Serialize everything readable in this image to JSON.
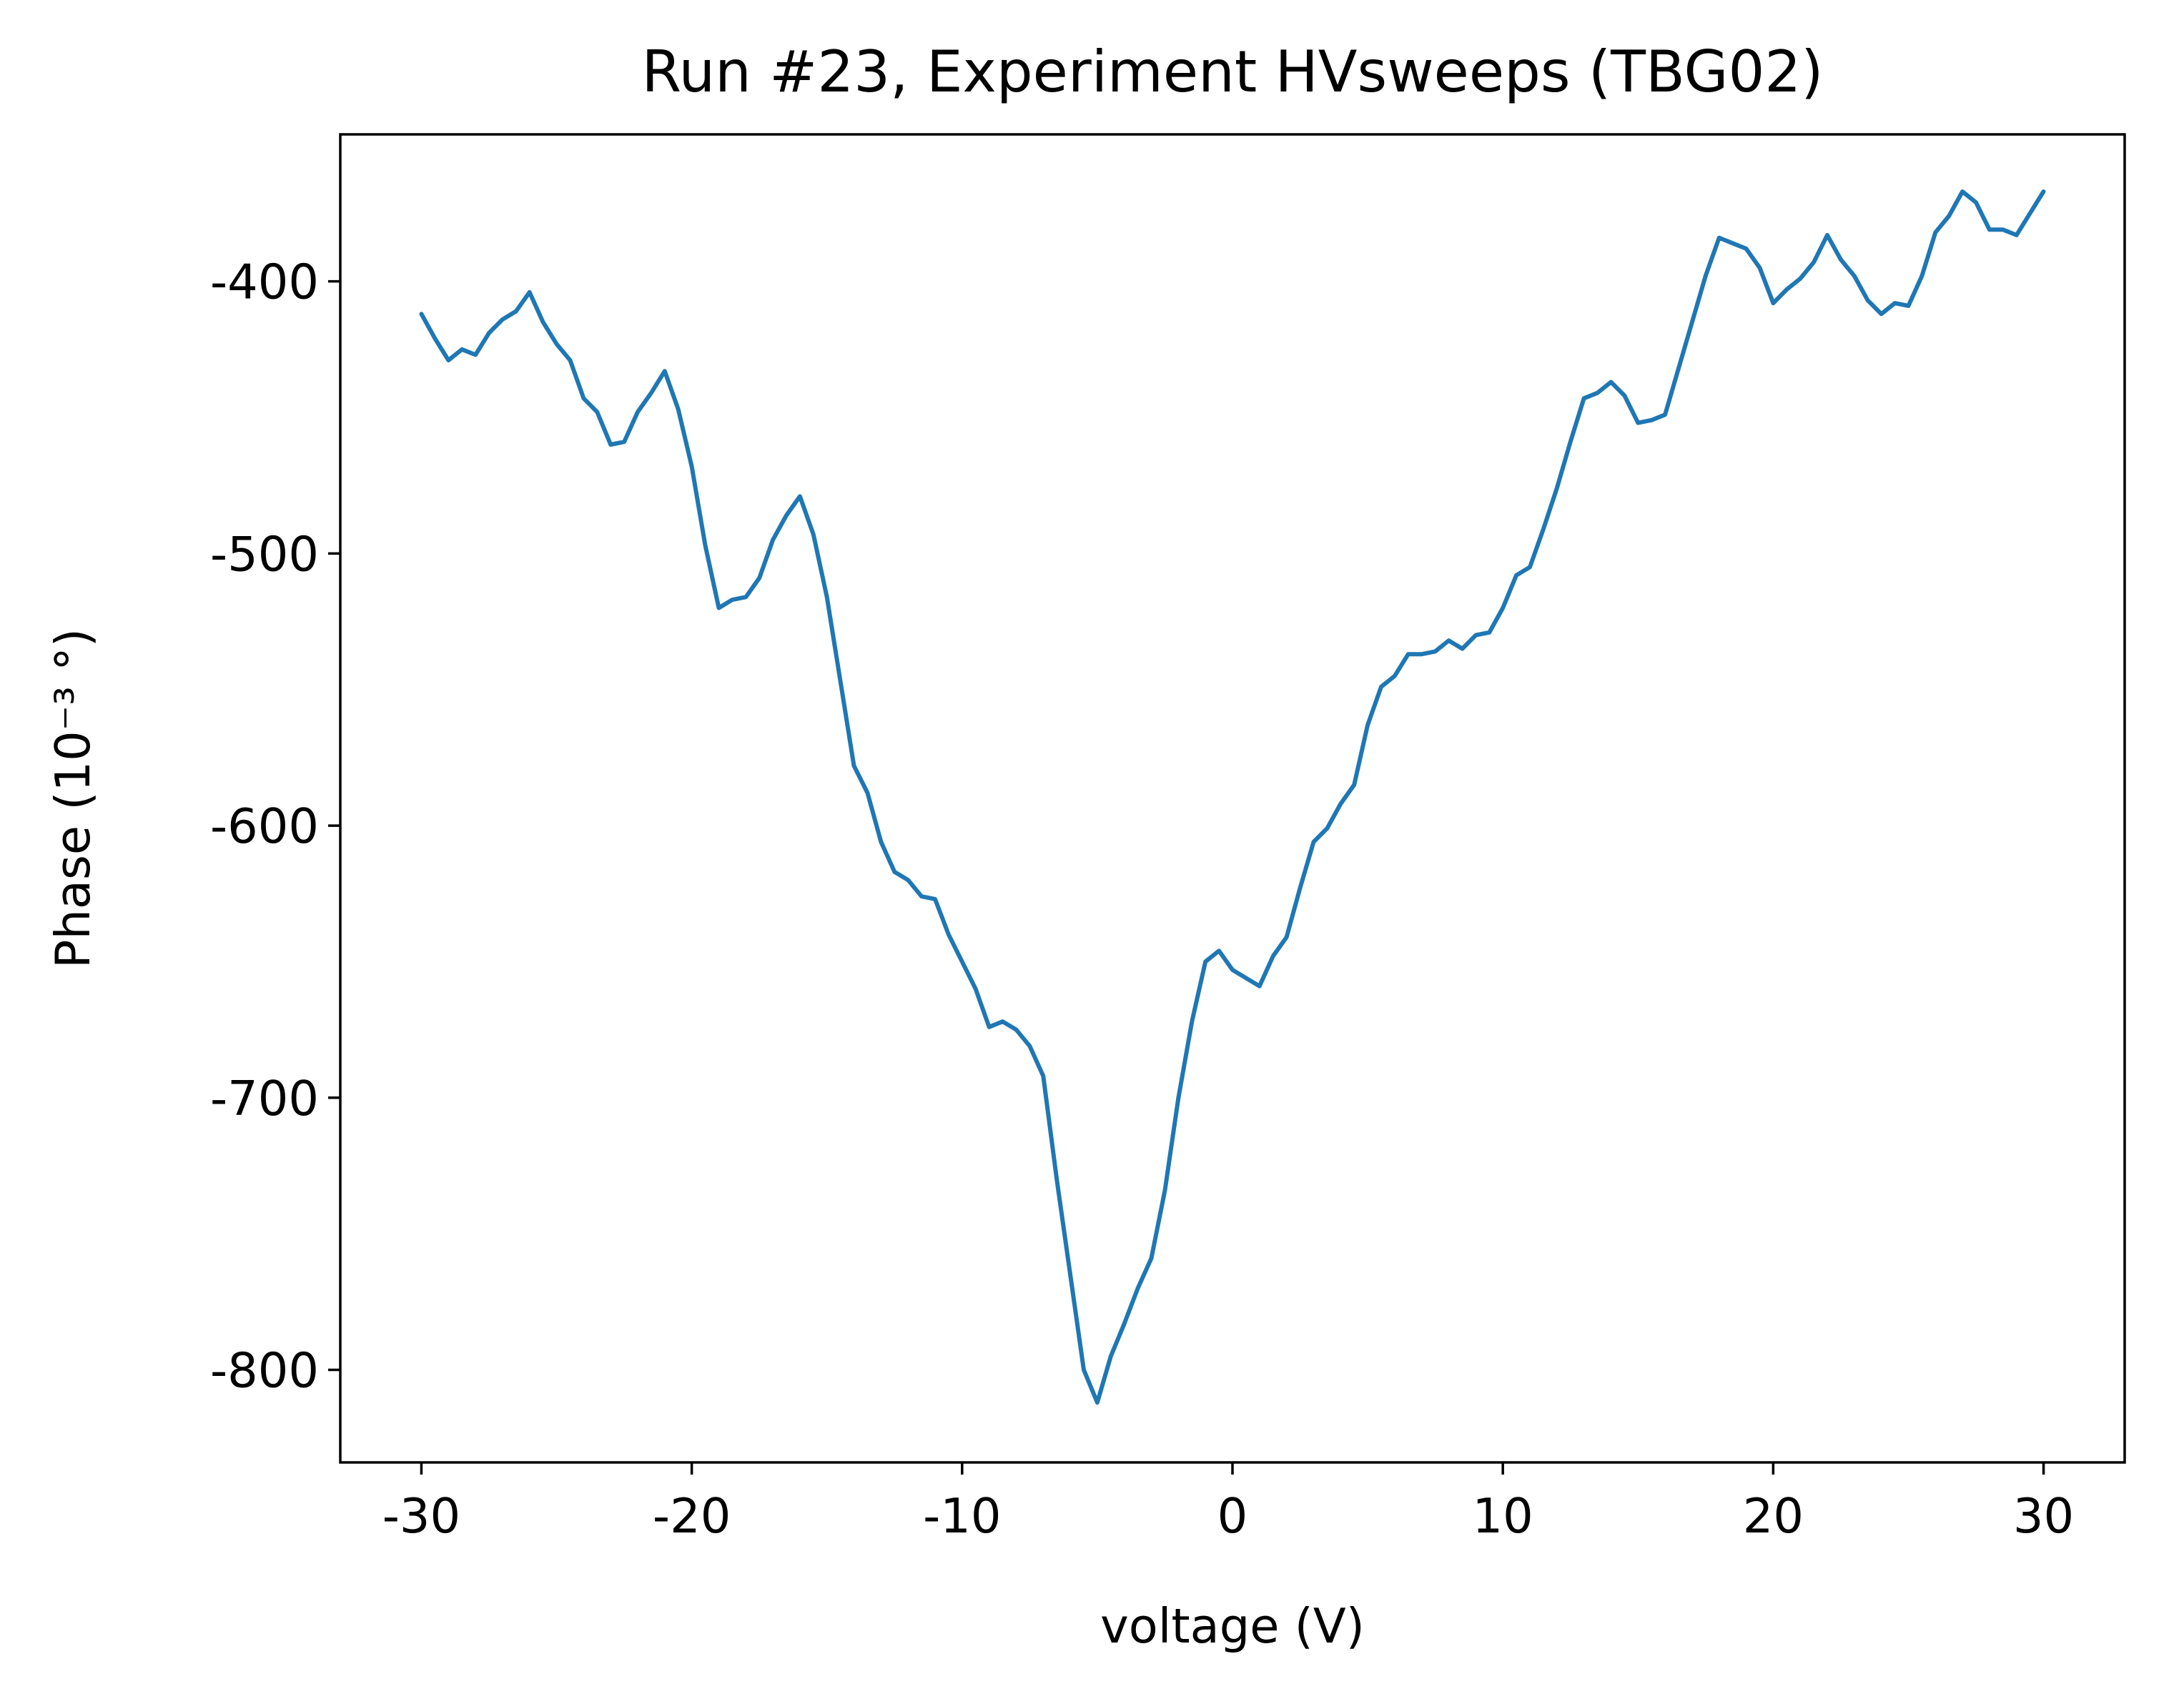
{
  "chart_data": {
    "type": "line",
    "title": "Run #23, Experiment HVsweeps (TBG02)",
    "xlabel": "voltage (V)",
    "ylabel": "Phase (10⁻³ °)",
    "xlim": [
      -33,
      33
    ],
    "ylim": [
      -834,
      -346
    ],
    "xticks": [
      -30,
      -20,
      -10,
      0,
      10,
      20,
      30
    ],
    "yticks": [
      -400,
      -500,
      -600,
      -700,
      -800
    ],
    "xtick_labels": [
      "-30",
      "-20",
      "-10",
      "0",
      "10",
      "20",
      "30"
    ],
    "ytick_labels": [
      "-400",
      "-500",
      "-600",
      "-700",
      "-800"
    ],
    "grid": false,
    "legend": "none",
    "series": [
      {
        "color": "#1f77b4",
        "x": [
          -30,
          -29.5,
          -29,
          -28.5,
          -28,
          -27.5,
          -27,
          -26.5,
          -26,
          -25.5,
          -25,
          -24.5,
          -24,
          -23.5,
          -23,
          -22.5,
          -22,
          -21.5,
          -21,
          -20.5,
          -20,
          -19.5,
          -19,
          -18.5,
          -18,
          -17.5,
          -17,
          -16.5,
          -16,
          -15.5,
          -15,
          -14.5,
          -14,
          -13.5,
          -13,
          -12.5,
          -12,
          -11.5,
          -11,
          -10.5,
          -10,
          -9.5,
          -9,
          -8.5,
          -8,
          -7.5,
          -7,
          -6.5,
          -6,
          -5.5,
          -5,
          -4.5,
          -4,
          -3.5,
          -3,
          -2.5,
          -2,
          -1.5,
          -1,
          -0.5,
          0,
          0.5,
          1,
          1.5,
          2,
          2.5,
          3,
          3.5,
          4,
          4.5,
          5,
          5.5,
          6,
          6.5,
          7,
          7.5,
          8,
          8.5,
          9,
          9.5,
          10,
          10.5,
          11,
          11.5,
          12,
          12.5,
          13,
          13.5,
          14,
          14.5,
          15,
          15.5,
          16,
          16.5,
          17,
          17.5,
          18,
          18.5,
          19,
          19.5,
          20,
          20.5,
          21,
          21.5,
          22,
          22.5,
          23,
          23.5,
          24,
          24.5,
          25,
          25.5,
          26,
          26.5,
          27,
          27.5,
          28,
          28.5,
          29,
          29.5,
          30
        ],
        "y": [
          -412,
          -421,
          -429,
          -425,
          -427,
          -419,
          -414,
          -411,
          -404,
          -415,
          -423,
          -429,
          -443,
          -448,
          -460,
          -459,
          -448,
          -441,
          -433,
          -447,
          -468,
          -497,
          -520,
          -517,
          -516,
          -509,
          -495,
          -486,
          -479,
          -493,
          -516,
          -547,
          -578,
          -588,
          -606,
          -617,
          -620,
          -626,
          -627,
          -640,
          -650,
          -660,
          -674,
          -672,
          -675,
          -681,
          -692,
          -730,
          -765,
          -800,
          -812,
          -795,
          -783,
          -770,
          -759,
          -734,
          -700,
          -672,
          -650,
          -646,
          -653,
          -656,
          -659,
          -648,
          -641,
          -623,
          -606,
          -601,
          -592,
          -585,
          -563,
          -549,
          -545,
          -537,
          -537,
          -536,
          -532,
          -535,
          -530,
          -529,
          -520,
          -508,
          -505,
          -491,
          -476,
          -459,
          -443,
          -441,
          -437,
          -442,
          -452,
          -451,
          -449,
          -432,
          -415,
          -398,
          -384,
          -386,
          -388,
          -395,
          -408,
          -403,
          -399,
          -393,
          -383,
          -392,
          -398,
          -407,
          -412,
          -408,
          -409,
          -398,
          -382,
          -376,
          -367,
          -371,
          -381,
          -381,
          -383,
          -375,
          -367
        ]
      }
    ]
  }
}
